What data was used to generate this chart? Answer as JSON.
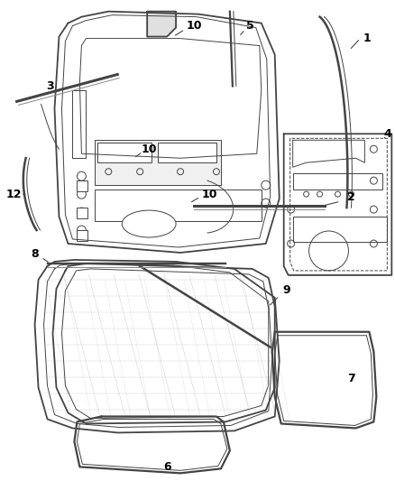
{
  "background_color": "#ffffff",
  "line_color": "#444444",
  "label_color": "#000000",
  "fig_width": 4.38,
  "fig_height": 5.33,
  "dpi": 100,
  "lw_main": 1.3,
  "lw_thin": 0.7,
  "lw_thick": 2.2
}
